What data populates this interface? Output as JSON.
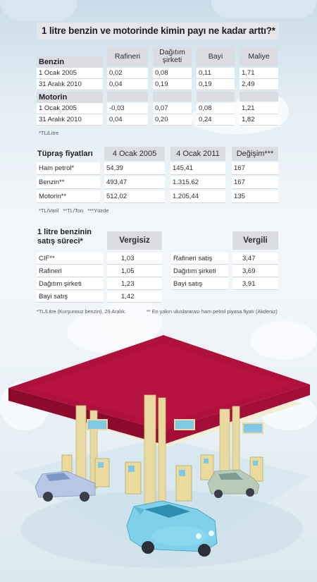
{
  "title": "1 litre benzin ve motorinde kimin payı ne kadar arttı?*",
  "table1": {
    "columns": [
      "Rafineri",
      "Dağıtım şirketi",
      "Bayi",
      "Maliye"
    ],
    "groups": [
      {
        "name": "Benzin",
        "rows": [
          {
            "label": "1 Ocak 2005",
            "values": [
              "0,02",
              "0,08",
              "0,11",
              "1,71"
            ]
          },
          {
            "label": "31 Aralık 2010",
            "values": [
              "0,04",
              "0,19",
              "0,19",
              "2,49"
            ]
          }
        ]
      },
      {
        "name": "Motorin",
        "rows": [
          {
            "label": "1 Ocak 2005",
            "values": [
              "-0,03",
              "0,07",
              "0,08",
              "1,21"
            ]
          },
          {
            "label": "31 Aralık 2010",
            "values": [
              "0,04",
              "0,20",
              "0,24",
              "1,82"
            ]
          }
        ]
      }
    ],
    "note": "*TL/Litre"
  },
  "table2": {
    "title": "Tüpraş fiyatları",
    "columns": [
      "4 Ocak 2005",
      "4 Ocak 2011",
      "Değişim***"
    ],
    "rows": [
      {
        "label": "Ham petrol*",
        "values": [
          "54,39",
          "145,41",
          "167"
        ]
      },
      {
        "label": "Benzin**",
        "values": [
          "493,47",
          "1.315,62",
          "167"
        ]
      },
      {
        "label": "Motorin**",
        "values": [
          "512,02",
          "1.205,44",
          "135"
        ]
      }
    ],
    "note": "*TL/Varil   **TL/Ton   ***Yüzde"
  },
  "table3": {
    "title": "1 litre benzinin satış süreci*",
    "vergisiz_header": "Vergisiz",
    "vergili_header": "Vergili",
    "vergisiz_rows": [
      {
        "label": "CIF**",
        "value": "1,03"
      },
      {
        "label": "Rafineri",
        "value": "1,05"
      },
      {
        "label": "Dağıtım şirketi",
        "value": "1,23"
      },
      {
        "label": "Bayi satış",
        "value": "1,42"
      }
    ],
    "vergili_rows": [
      {
        "label": "Rafineri satış",
        "value": "3,47"
      },
      {
        "label": "Dağıtım şirketi",
        "value": "3,69"
      },
      {
        "label": "Bayi satış",
        "value": "3,91"
      }
    ],
    "note_left": "*TL/Litre (Kurşunsuz benzin), 29 Aralık.",
    "note_right": "** En yakın uluslararası ham petrol piyasa fiyatı (Akdeniz)"
  },
  "colors": {
    "canopy_top": "#b0103c",
    "canopy_side": "#8c0a2e",
    "pillar": "#e8d9a0",
    "car_front": "#7fd0ea",
    "car_back": "#b8c6e6"
  }
}
